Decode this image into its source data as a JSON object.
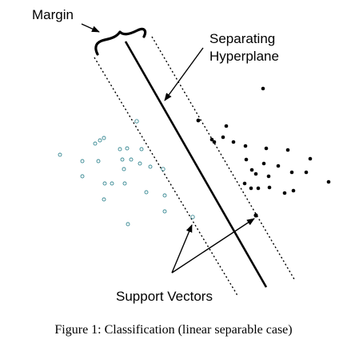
{
  "labels": {
    "margin": "Margin",
    "separating_line1": "Separating",
    "separating_line2": "Hyperplane",
    "support_vectors": "Support Vectors",
    "caption": "Figure 1: Classification (linear separable case)"
  },
  "colors": {
    "open_point": "#3a8a94",
    "filled_point": "#000000",
    "line": "#000000"
  }
}
